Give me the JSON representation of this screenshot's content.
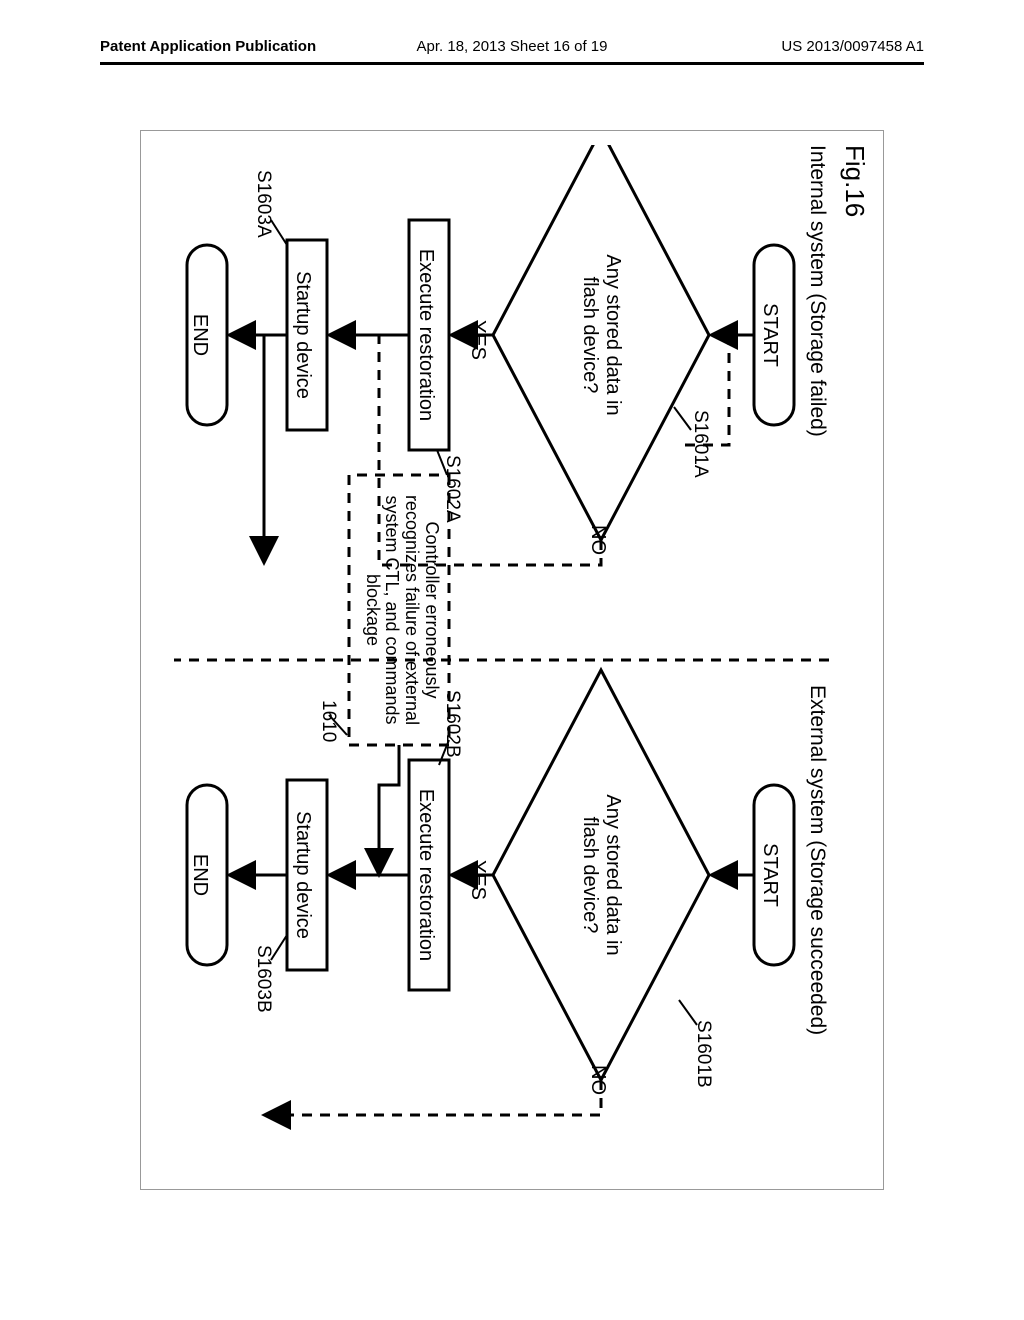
{
  "header": {
    "left": "Patent Application Publication",
    "center": "Apr. 18, 2013  Sheet 16 of 19",
    "right": "US 2013/0097458 A1"
  },
  "figure": {
    "label": "Fig.16",
    "internal_title": "Internal system (Storage failed)",
    "external_title": "External system (Storage succeeded)",
    "start": "START",
    "end": "END",
    "decision": "Any stored data in\nflash device?",
    "yes": "YES",
    "no": "NO",
    "exec": "Execute restoration",
    "startup": "Startup device",
    "note": "Controller erroneously\nrecognizes failure of external\nsystem CTL, and commands\nblockage",
    "ids": {
      "s1601a": "S1601A",
      "s1602a": "S1602A",
      "s1603a": "S1603A",
      "s1601b": "S1601B",
      "s1602b": "S1602B",
      "s1603b": "S1603B",
      "n1610": "1610"
    }
  },
  "style": {
    "stroke": "#000000",
    "stroke_width": 3,
    "dash": "10,8",
    "frame_border": "#999999",
    "bg": "#ffffff",
    "font": "Arial",
    "terminal_rx": 30
  }
}
